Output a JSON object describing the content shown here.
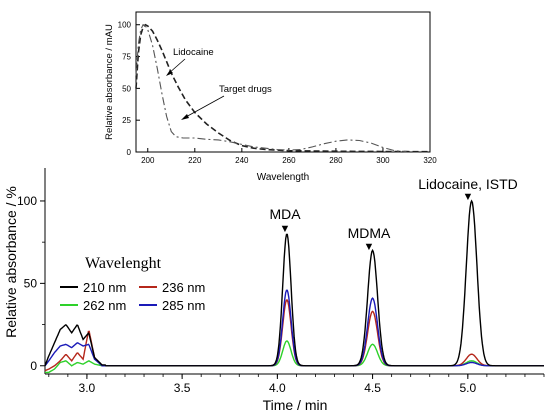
{
  "chart_data": [
    {
      "type": "line",
      "role": "inset-uv-spectra",
      "xlabel": "Wavelength",
      "ylabel": "Relative absorbance / mAU",
      "xlim": [
        195,
        320
      ],
      "ylim": [
        0,
        110
      ],
      "xticks": [
        200,
        220,
        240,
        260,
        280,
        300,
        320
      ],
      "yticks": [
        0,
        25,
        50,
        75,
        100
      ],
      "grid": false,
      "series": [
        {
          "name": "Lidocaine",
          "style": "dashed",
          "color": "#222222",
          "x": [
            195,
            196,
            197,
            198,
            199,
            200,
            202,
            204,
            206,
            208,
            210,
            213,
            216,
            220,
            225,
            230,
            235,
            240,
            245,
            250,
            255,
            260,
            270,
            280,
            290,
            300,
            310,
            320
          ],
          "y": [
            50,
            78,
            92,
            98,
            100,
            99,
            95,
            88,
            80,
            71,
            62,
            51,
            41,
            31,
            22,
            15,
            9,
            5,
            3,
            2,
            1.5,
            1,
            0.8,
            0.6,
            0.5,
            0.4,
            0.3,
            0.2
          ]
        },
        {
          "name": "Target drugs",
          "style": "dashdot",
          "color": "#555555",
          "x": [
            195,
            196,
            197,
            198,
            199,
            200,
            202,
            204,
            206,
            208,
            210,
            212,
            215,
            220,
            225,
            230,
            235,
            240,
            245,
            250,
            255,
            260,
            265,
            270,
            275,
            280,
            285,
            290,
            295,
            300,
            305,
            310
          ],
          "y": [
            60,
            85,
            96,
            100,
            99,
            96,
            84,
            66,
            46,
            28,
            16,
            12,
            11,
            11,
            10,
            9.5,
            8,
            6,
            4,
            3,
            2,
            1.5,
            2,
            4,
            6.5,
            8.5,
            9.5,
            9,
            7,
            3.5,
            1,
            0.3
          ]
        }
      ],
      "annotations": [
        "Lidocaine",
        "Target drugs"
      ]
    },
    {
      "type": "line",
      "role": "main-chromatogram",
      "xlabel": "Time / min",
      "ylabel": "Relative absorbance / %",
      "xlim": [
        2.78,
        5.4
      ],
      "ylim": [
        -5,
        120
      ],
      "xticks": [
        3.0,
        3.5,
        4.0,
        4.5,
        5.0
      ],
      "yticks": [
        0,
        50,
        100
      ],
      "grid": false,
      "legend_title": "Wavelenght",
      "legend_placement": "left",
      "peaks": [
        {
          "label": "MDA",
          "time": 4.05,
          "marker": "▼"
        },
        {
          "label": "MDMA",
          "time": 4.5,
          "marker": "▼"
        },
        {
          "label": "Lidocaine, ISTD",
          "time": 5.02,
          "marker": "▼"
        }
      ],
      "series": [
        {
          "name": "210 nm",
          "color": "#000000",
          "peak_heights": [
            80,
            70,
            100
          ],
          "front_profile": [
            0,
            6,
            14,
            22,
            25,
            20,
            25,
            16,
            20,
            5,
            0.5
          ]
        },
        {
          "name": "236 nm",
          "color": "#b5271b",
          "peak_heights": [
            40,
            33,
            7
          ],
          "front_profile": [
            -3,
            -2,
            0,
            3,
            7,
            3,
            8,
            4,
            22,
            5,
            0
          ]
        },
        {
          "name": "262 nm",
          "color": "#2ed12a",
          "peak_heights": [
            15,
            13,
            3
          ],
          "front_profile": [
            -4,
            -4,
            -2,
            2,
            3,
            0,
            2,
            1,
            3,
            1,
            0
          ]
        },
        {
          "name": "285 nm",
          "color": "#1a1ab8",
          "peak_heights": [
            46,
            41,
            2
          ],
          "front_profile": [
            0,
            3,
            8,
            12,
            13,
            11,
            14,
            12,
            13,
            4,
            0
          ]
        }
      ],
      "front_times": [
        2.78,
        2.8,
        2.83,
        2.86,
        2.89,
        2.92,
        2.95,
        2.98,
        3.01,
        3.04,
        3.08
      ]
    }
  ]
}
